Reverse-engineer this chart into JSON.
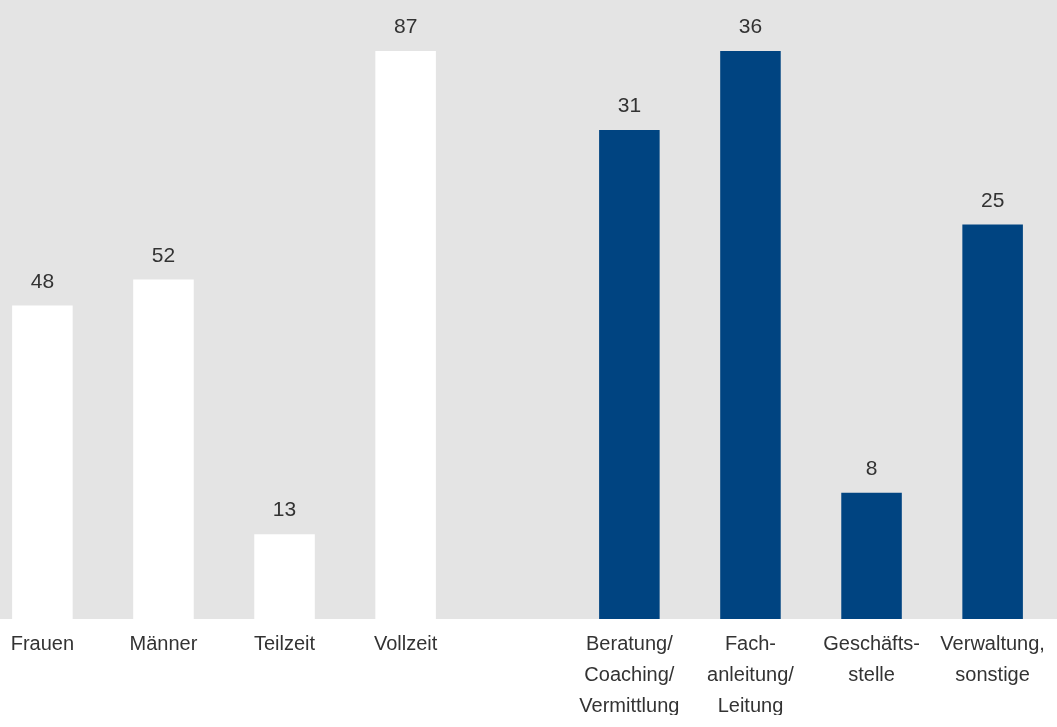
{
  "chart_data": [
    {
      "type": "bar",
      "categories": [
        "Frauen",
        "Männer",
        "Teilzeit",
        "Vollzeit"
      ],
      "values": [
        48,
        52,
        13,
        87
      ],
      "color": "#ffffff",
      "data_labels": true
    },
    {
      "type": "bar",
      "categories": [
        "Beratung/ Coaching/ Vermittlung",
        "Fach- anleitung/ Leitung",
        "Geschäfts- stelle",
        "Verwaltung, sonstige"
      ],
      "values": [
        31,
        36,
        8,
        25
      ],
      "color": "#004481",
      "data_labels": true
    }
  ]
}
